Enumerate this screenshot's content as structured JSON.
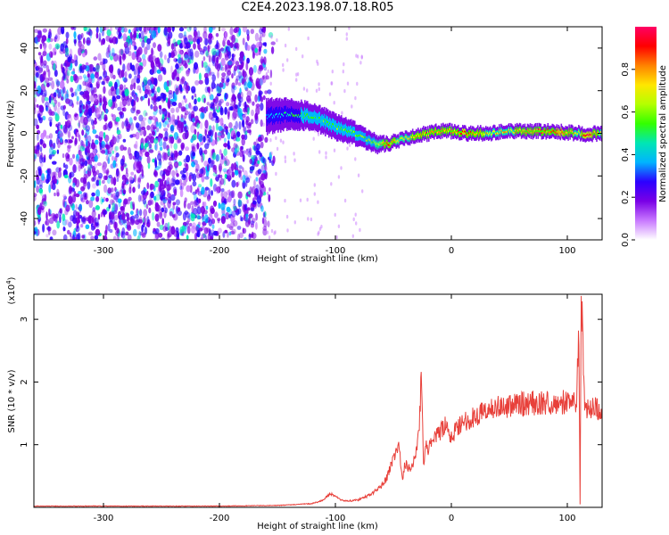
{
  "page_title": "C2E4.2023.198.07.18.R05",
  "chart_data": [
    {
      "type": "heatmap",
      "title": "C2E4.2023.198.07.18.R05",
      "xlabel": "Height of straight line (km)",
      "ylabel": "Frequency (Hz)",
      "xlim": [
        -360,
        130
      ],
      "ylim": [
        -50,
        50
      ],
      "x_ticks": [
        -300,
        -200,
        -100,
        0,
        100
      ],
      "x_tick_labels": [
        "-300",
        "-200",
        "-100",
        "0",
        "100"
      ],
      "y_ticks": [
        -40,
        -20,
        0,
        20,
        40
      ],
      "y_tick_labels": [
        "-40",
        "-20",
        "0",
        "20",
        "40"
      ],
      "colorbar": {
        "label": "Normalized spectral amplitude",
        "range": [
          0,
          1
        ],
        "ticks": [
          0.0,
          0.2,
          0.4,
          0.6,
          0.8
        ],
        "tick_labels": [
          "0.0",
          "0.2",
          "0.4",
          "0.6",
          "0.8"
        ],
        "colormap": [
          "#ffffff",
          "#c878ff",
          "#7a00e6",
          "#2c00ff",
          "#00b4ff",
          "#00e6b4",
          "#32ff00",
          "#b4ff00",
          "#ffe600",
          "#ff8200",
          "#ff0000",
          "#ff0064"
        ]
      },
      "noise_region": {
        "x_range": [
          -360,
          -160
        ],
        "y_range": [
          -50,
          50
        ],
        "level": 0.12
      },
      "signal_track": [
        {
          "x": -160,
          "y": 8,
          "width": 8,
          "level": 0.3
        },
        {
          "x": -140,
          "y": 9,
          "width": 7,
          "level": 0.4
        },
        {
          "x": -120,
          "y": 8,
          "width": 6,
          "level": 0.45
        },
        {
          "x": -100,
          "y": 3,
          "width": 6,
          "level": 0.45
        },
        {
          "x": -80,
          "y": -1,
          "width": 5,
          "level": 0.5
        },
        {
          "x": -65,
          "y": -5,
          "width": 4,
          "level": 0.55
        },
        {
          "x": -55,
          "y": -5,
          "width": 3,
          "level": 0.8
        },
        {
          "x": -45,
          "y": -3,
          "width": 3,
          "level": 0.6
        },
        {
          "x": -30,
          "y": -1,
          "width": 3,
          "level": 0.7
        },
        {
          "x": -20,
          "y": 0,
          "width": 3,
          "level": 0.75
        },
        {
          "x": -10,
          "y": 1,
          "width": 3,
          "level": 0.75
        },
        {
          "x": 0,
          "y": 1,
          "width": 3,
          "level": 0.7
        },
        {
          "x": 10,
          "y": 0,
          "width": 3,
          "level": 0.8
        },
        {
          "x": 30,
          "y": 0,
          "width": 3,
          "level": 0.65
        },
        {
          "x": 50,
          "y": 1,
          "width": 3,
          "level": 0.65
        },
        {
          "x": 75,
          "y": 1,
          "width": 3,
          "level": 0.75
        },
        {
          "x": 95,
          "y": 0.5,
          "width": 3,
          "level": 0.8
        },
        {
          "x": 110,
          "y": 0,
          "width": 3,
          "level": 0.6
        },
        {
          "x": 115,
          "y": -0.5,
          "width": 3,
          "level": 0.9
        },
        {
          "x": 130,
          "y": 0,
          "width": 3,
          "level": 0.6
        }
      ]
    },
    {
      "type": "line",
      "xlabel": "Height of straight line (km)",
      "ylabel": "SNR (10 * v/v)",
      "y_multiplier_label": "(x10",
      "y_multiplier_exponent": "4",
      "y_multiplier_close": ")",
      "xlim": [
        -360,
        130
      ],
      "ylim": [
        0,
        3.4
      ],
      "x_ticks": [
        -300,
        -200,
        -100,
        0,
        100
      ],
      "x_tick_labels": [
        "-300",
        "-200",
        "-100",
        "0",
        "100"
      ],
      "y_ticks": [
        1,
        2,
        3
      ],
      "y_tick_labels": [
        "1",
        "2",
        "3"
      ],
      "line_color": "#e8403a",
      "series": [
        {
          "x": [
            -360,
            -300,
            -250,
            -200,
            -150,
            -120,
            -110,
            -105,
            -100,
            -95,
            -90,
            -80,
            -70,
            -60,
            -55,
            -50,
            -45,
            -42,
            -40,
            -35,
            -30,
            -28,
            -26,
            -24,
            -22,
            -20,
            -15,
            -10,
            -5,
            0,
            5,
            10,
            20,
            30,
            40,
            60,
            80,
            100,
            108,
            110,
            111,
            112,
            115,
            120,
            130
          ],
          "y": [
            0.02,
            0.02,
            0.02,
            0.02,
            0.03,
            0.06,
            0.12,
            0.22,
            0.18,
            0.12,
            0.1,
            0.12,
            0.2,
            0.35,
            0.5,
            0.8,
            0.95,
            0.45,
            0.7,
            0.6,
            0.9,
            1.2,
            2.05,
            0.7,
            1.0,
            0.9,
            1.1,
            1.2,
            1.3,
            1.1,
            1.3,
            1.35,
            1.45,
            1.55,
            1.6,
            1.65,
            1.67,
            1.68,
            1.7,
            2.9,
            0.05,
            3.4,
            1.55,
            1.58,
            1.58
          ]
        }
      ]
    }
  ]
}
